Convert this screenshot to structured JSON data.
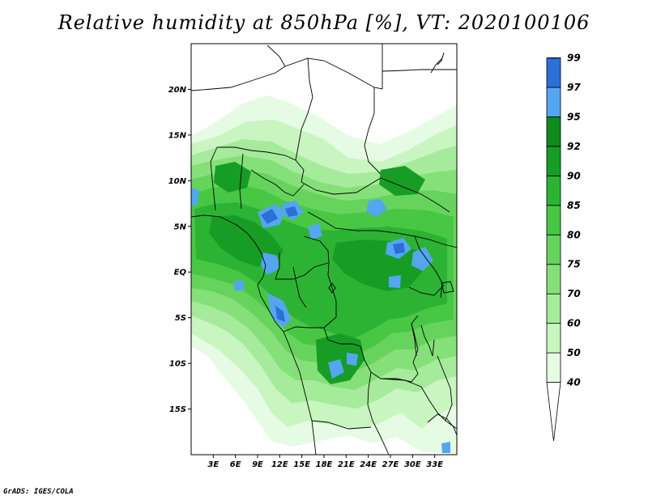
{
  "title": "Relative humidity at 850hPa [%], VT: 2020100106",
  "credit": "GrADS: IGES/COLA",
  "map": {
    "lon_range": [
      0,
      36
    ],
    "lat_range": [
      -20,
      25
    ],
    "lat_ticks": [
      {
        "value": 20,
        "label": "20N"
      },
      {
        "value": 15,
        "label": "15N"
      },
      {
        "value": 10,
        "label": "10N"
      },
      {
        "value": 5,
        "label": "5N"
      },
      {
        "value": 0,
        "label": "EQ"
      },
      {
        "value": -5,
        "label": "5S"
      },
      {
        "value": -10,
        "label": "10S"
      },
      {
        "value": -15,
        "label": "15S"
      }
    ],
    "lon_ticks": [
      {
        "value": 3,
        "label": "3E"
      },
      {
        "value": 6,
        "label": "6E"
      },
      {
        "value": 9,
        "label": "9E"
      },
      {
        "value": 12,
        "label": "12E"
      },
      {
        "value": 15,
        "label": "15E"
      },
      {
        "value": 18,
        "label": "18E"
      },
      {
        "value": 21,
        "label": "21E"
      },
      {
        "value": 24,
        "label": "24E"
      },
      {
        "value": 27,
        "label": "27E"
      },
      {
        "value": 30,
        "label": "30E"
      },
      {
        "value": 33,
        "label": "33E"
      }
    ]
  },
  "colorbar": {
    "levels": [
      "40",
      "50",
      "60",
      "70",
      "75",
      "80",
      "85",
      "90",
      "92",
      "95",
      "97",
      "99"
    ],
    "colors": [
      "#ffffff",
      "#e6fbe3",
      "#c8f5c0",
      "#a6eb9b",
      "#86e079",
      "#66d45c",
      "#48c744",
      "#2db334",
      "#179d26",
      "#108a1c",
      "#55a6f0",
      "#2a70d8",
      "#1a4fb4"
    ]
  },
  "palette": {
    "rh40": "#ffffff",
    "rh50": "#e6fbe3",
    "rh60": "#c8f5c0",
    "rh70": "#a6eb9b",
    "rh75": "#86e079",
    "rh80": "#66d45c",
    "rh85": "#48c744",
    "rh90": "#2db334",
    "rh92": "#179d26",
    "rh95": "#55a6f0",
    "rh97": "#2a70d8"
  }
}
